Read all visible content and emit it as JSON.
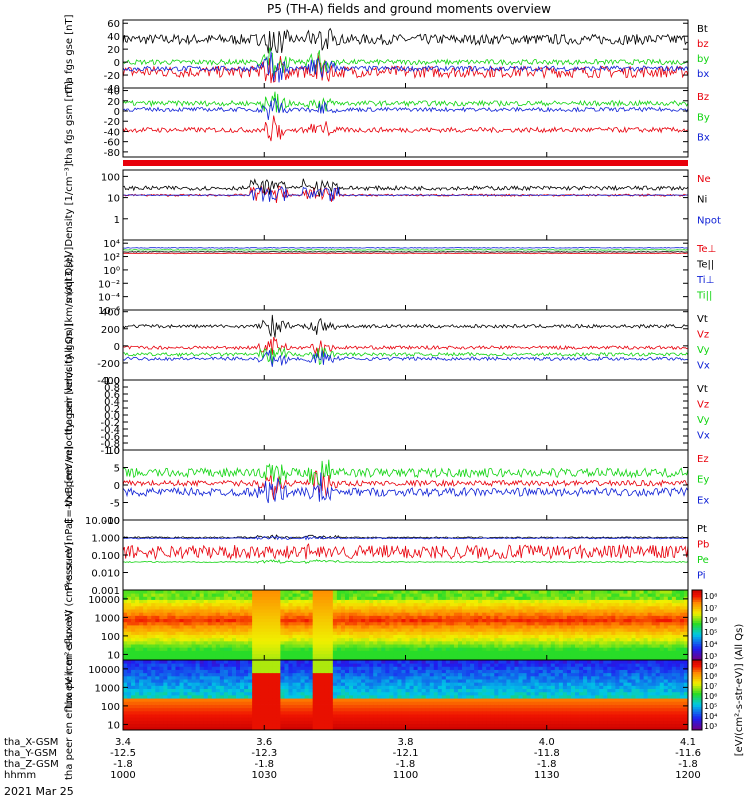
{
  "title": "P5 (TH-A) fields and ground moments overview",
  "date": "2021 Mar 25",
  "colors": {
    "black": "#000000",
    "red": "#e8000b",
    "green": "#11d411",
    "blue": "#1022d6"
  },
  "orbit": {
    "rows": [
      {
        "label": "tha_X-GSM",
        "values": [
          "3.4",
          "3.6",
          "3.8",
          "4.0",
          "4.1"
        ]
      },
      {
        "label": "tha_Y-GSM",
        "values": [
          "-12.5",
          "-12.3",
          "-12.1",
          "-11.8",
          "-11.6"
        ]
      },
      {
        "label": "tha_Z-GSM",
        "values": [
          "-1.8",
          "-1.8",
          "-1.8",
          "-1.8",
          "-1.8"
        ]
      },
      {
        "label": "hhmm",
        "values": [
          "1000",
          "1030",
          "1100",
          "1130",
          "1200"
        ]
      }
    ]
  },
  "colorbar_label": "[eV/(cm²-s-str-eV)] (All Qs)",
  "chart_data": [
    {
      "type": "line",
      "ylabel": "tha fgs gse [nT]",
      "ylim": [
        -40,
        65
      ],
      "yticks": [
        "60",
        "40",
        "20",
        "0",
        "-20",
        "-40"
      ],
      "ytick_values": [
        60,
        40,
        20,
        0,
        -20,
        -40
      ],
      "series": [
        {
          "name": "Bt",
          "color": "black",
          "base": 35,
          "noise": 8
        },
        {
          "name": "bz",
          "color": "red",
          "base": -15,
          "noise": 9
        },
        {
          "name": "by",
          "color": "green",
          "base": 0,
          "noise": 4
        },
        {
          "name": "bx",
          "color": "blue",
          "base": -10,
          "noise": 4
        }
      ],
      "events": [
        {
          "x": 1032,
          "amp": 30
        },
        {
          "x": 1042,
          "amp": 25
        }
      ]
    },
    {
      "type": "line",
      "ylabel": "tha fgs gsm [nT]",
      "ylim": [
        -90,
        45
      ],
      "yticks": [
        "40",
        "20",
        "0",
        "-20",
        "-40",
        "-60",
        "-80"
      ],
      "ytick_values": [
        40,
        20,
        0,
        -20,
        -40,
        -60,
        -80
      ],
      "series": [
        {
          "name": "Bz",
          "color": "red",
          "base": -37,
          "noise": 5
        },
        {
          "name": "By",
          "color": "green",
          "base": 15,
          "noise": 5
        },
        {
          "name": "Bx",
          "color": "blue",
          "base": 3,
          "noise": 4
        }
      ],
      "events": [
        {
          "x": 1032,
          "amp": 25
        },
        {
          "x": 1042,
          "amp": 20
        }
      ]
    },
    {
      "type": "flag_bar",
      "color": "red"
    },
    {
      "type": "line",
      "ylabel": "Density [1/cm⁻³]",
      "log": true,
      "ylim": [
        0.1,
        200
      ],
      "yticks": [
        "100",
        "10",
        "1"
      ],
      "ytick_values": [
        100,
        10,
        1
      ],
      "series": [
        {
          "name": "Ne",
          "color": "red",
          "base": 13,
          "noise": 0.05
        },
        {
          "name": "Ni",
          "color": "black",
          "base": 28,
          "noise": 0.1
        },
        {
          "name": "Npot",
          "color": "blue",
          "base": 13,
          "noise": 0.02
        }
      ],
      "events": [
        {
          "x": 1031,
          "amp": 2
        },
        {
          "x": 1042,
          "amp": 2
        }
      ]
    },
    {
      "type": "line",
      "ylabel": "moqt3 [eV]",
      "log": true,
      "ylim": [
        1e-06,
        30000
      ],
      "yticks": [
        "10⁴",
        "10²",
        "10⁰",
        "10⁻²",
        "10⁻⁴",
        "10⁻⁶"
      ],
      "ytick_values": [
        10000,
        100,
        1,
        0.01,
        0.0001,
        1e-06
      ],
      "series": [
        {
          "name": "Te⊥",
          "color": "red",
          "base": 300,
          "noise": 0.05
        },
        {
          "name": "Te||",
          "color": "black",
          "base": 500,
          "noise": 0.05
        },
        {
          "name": "Ti⊥",
          "color": "blue",
          "base": 2000,
          "noise": 0.05
        },
        {
          "name": "Ti||",
          "color": "green",
          "base": 1000,
          "noise": 0.05
        }
      ],
      "events": []
    },
    {
      "type": "line",
      "ylabel": "tha peir velocity gsm [km/s (All Qs)]",
      "ylim": [
        -400,
        420
      ],
      "yticks": [
        "400",
        "200",
        "0",
        "-200",
        "-400"
      ],
      "ytick_values": [
        400,
        200,
        0,
        -200,
        -400
      ],
      "series": [
        {
          "name": "Vt",
          "color": "black",
          "base": 230,
          "noise": 20
        },
        {
          "name": "Vz",
          "color": "red",
          "base": -20,
          "noise": 20
        },
        {
          "name": "Vy",
          "color": "green",
          "base": -100,
          "noise": 20
        },
        {
          "name": "Vx",
          "color": "blue",
          "base": -150,
          "noise": 20
        }
      ],
      "events": [
        {
          "x": 1032,
          "amp": 150
        },
        {
          "x": 1042,
          "amp": 120
        }
      ]
    },
    {
      "type": "line",
      "ylabel": "tha peer velocity gsm [km/s (All Qs)]",
      "ylim": [
        -1,
        1
      ],
      "yticks": [
        "1.0",
        "0.8",
        "0.6",
        "0.4",
        "0.2",
        "0.0",
        "-0.2",
        "-0.4",
        "-0.6",
        "-0.8",
        "-1.0"
      ],
      "ytick_values": [
        1.0,
        0.8,
        0.6,
        0.4,
        0.2,
        0.0,
        -0.2,
        -0.4,
        -0.6,
        -0.8,
        -1.0
      ],
      "series": [
        {
          "name": "Vt",
          "color": "black"
        },
        {
          "name": "Vz",
          "color": "red"
        },
        {
          "name": "Vy",
          "color": "green"
        },
        {
          "name": "Vx",
          "color": "blue"
        }
      ],
      "empty": true,
      "events": []
    },
    {
      "type": "line",
      "ylabel": "E=-VxB [mV/m]",
      "ylim": [
        -10,
        10
      ],
      "yticks": [
        "10",
        "5",
        "0",
        "-5",
        "-10"
      ],
      "ytick_values": [
        10,
        5,
        0,
        -5,
        -10
      ],
      "series": [
        {
          "name": "Ez",
          "color": "red",
          "base": 0.5,
          "noise": 0.8
        },
        {
          "name": "Ey",
          "color": "green",
          "base": 3.5,
          "noise": 1.3
        },
        {
          "name": "Ex",
          "color": "blue",
          "base": -2,
          "noise": 1.2
        }
      ],
      "events": [
        {
          "x": 1032,
          "amp": 5
        },
        {
          "x": 1042,
          "amp": 5
        }
      ]
    },
    {
      "type": "line",
      "ylabel": "Pressure [nPa]",
      "log": true,
      "ylim": [
        0.001,
        10
      ],
      "yticks": [
        "10.000",
        "1.000",
        "0.100",
        "0.010",
        "0.001"
      ],
      "ytick_values": [
        10,
        1,
        0.1,
        0.01,
        0.001
      ],
      "series": [
        {
          "name": "Pt",
          "color": "black",
          "base": 1.0,
          "noise": 0.04
        },
        {
          "name": "Pb",
          "color": "red",
          "base": 0.15,
          "noise": 0.4
        },
        {
          "name": "Pe",
          "color": "green",
          "base": 0.04,
          "noise": 0.03
        },
        {
          "name": "Pi",
          "color": "blue",
          "base": 0.9,
          "noise": 0.03
        }
      ],
      "events": [
        {
          "x": 1032,
          "amp": 0.5
        },
        {
          "x": 1042,
          "amp": 0.5
        }
      ]
    },
    {
      "type": "heatmap",
      "ylabel": "tha peir en eflux eV (cm²-s-sr-eV)",
      "log": true,
      "ylim": [
        5,
        30000
      ],
      "yticks": [
        "10000",
        "1000",
        "100",
        "10"
      ],
      "ytick_values": [
        10000,
        1000,
        100,
        10
      ],
      "colorbar_ticks": [
        "10⁸",
        "10⁷",
        "10⁶",
        "10⁵",
        "10⁴",
        "10³"
      ],
      "kind": "ion"
    },
    {
      "type": "heatmap",
      "ylabel": "tha peer en eflux eV (cm²-s-sr-eV)",
      "log": true,
      "ylim": [
        5,
        30000
      ],
      "yticks": [
        "10000",
        "1000",
        "100",
        "10"
      ],
      "ytick_values": [
        10000,
        1000,
        100,
        10
      ],
      "colorbar_ticks": [
        "10⁹",
        "10⁸",
        "10⁷",
        "10⁶",
        "10⁵",
        "10⁴",
        "10³"
      ],
      "kind": "electron"
    }
  ]
}
